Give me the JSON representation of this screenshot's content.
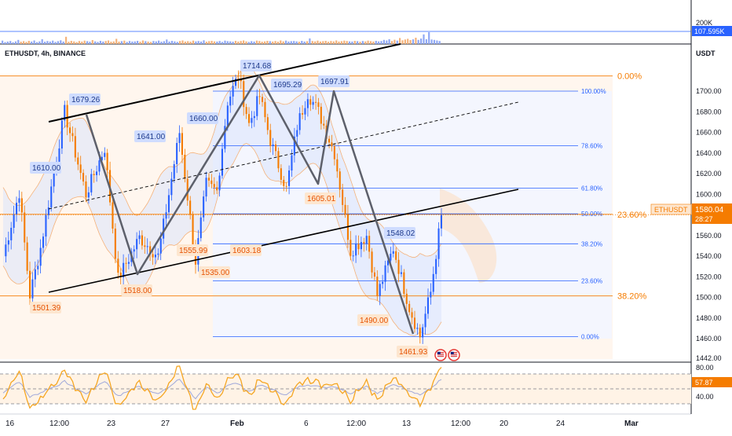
{
  "header": {
    "symbol_label": "ETHUSDT, 4h, BINANCE",
    "currency_label": "USDT"
  },
  "volume_panel": {
    "axis_label": "200K",
    "current_value": "107.595K",
    "values": [
      14,
      6,
      9,
      12,
      5,
      10,
      18,
      8,
      11,
      7,
      13,
      9,
      15,
      6,
      10,
      22,
      8,
      12,
      9,
      14,
      7,
      11,
      16,
      9,
      35,
      8,
      13,
      10,
      6,
      12,
      9,
      14,
      11,
      8,
      17,
      10,
      7,
      13,
      9,
      12,
      15,
      8,
      10,
      24,
      9,
      11,
      14,
      7,
      12,
      9,
      10,
      13,
      8,
      15,
      11,
      9,
      7,
      12,
      10,
      14,
      8,
      11,
      20,
      9,
      13,
      10,
      7,
      12,
      15,
      9,
      11,
      8,
      14,
      10,
      12,
      9,
      16,
      8,
      11,
      13,
      10,
      9,
      12,
      7,
      14,
      11,
      10,
      8,
      13,
      9,
      12,
      15,
      10,
      7,
      11,
      9,
      14,
      12,
      8,
      10,
      13,
      11,
      9,
      12,
      8,
      15,
      10,
      14,
      9,
      11,
      12,
      10,
      8,
      13,
      9,
      11,
      26,
      12,
      10,
      14,
      9,
      11,
      13,
      8,
      12,
      10,
      15,
      9,
      11,
      14,
      12,
      10,
      9,
      13,
      11,
      8,
      12,
      10,
      14,
      11,
      9,
      13,
      10,
      12,
      18,
      15,
      22,
      12,
      19,
      14,
      28,
      16,
      20,
      24,
      17,
      21,
      30,
      18,
      25,
      48,
      22,
      60,
      20,
      18,
      15,
      12
    ]
  },
  "chart_data": {
    "type": "candlestick",
    "symbol": "ETHUSDT",
    "timeframe": "4h",
    "exchange": "BINANCE",
    "y_axis_ticks": [
      "1700.00",
      "1680.00",
      "1660.00",
      "1640.00",
      "1620.00",
      "1600.00",
      "1580.00",
      "1560.00",
      "1540.00",
      "1520.00",
      "1500.00",
      "1480.00",
      "1460.00",
      "1442.00"
    ],
    "ylim": [
      1442,
      1727
    ],
    "x_axis_ticks": [
      "16",
      "12:00",
      "23",
      "27",
      "Feb",
      "6",
      "12:00",
      "13",
      "12:00",
      "20",
      "24",
      "Mar"
    ],
    "current_price": {
      "value": "1580.04",
      "countdown": "28:27",
      "label": "ETHUSDT",
      "color": "#f57c00"
    },
    "swing_labels": [
      {
        "text": "1610.00",
        "type": "high"
      },
      {
        "text": "1501.39",
        "type": "low"
      },
      {
        "text": "1679.26",
        "type": "high"
      },
      {
        "text": "1641.00",
        "type": "high"
      },
      {
        "text": "1518.00",
        "type": "low"
      },
      {
        "text": "1555.99",
        "type": "low"
      },
      {
        "text": "1660.00",
        "type": "high"
      },
      {
        "text": "1535.00",
        "type": "low"
      },
      {
        "text": "1603.18",
        "type": "low"
      },
      {
        "text": "1714.68",
        "type": "high"
      },
      {
        "text": "1695.29",
        "type": "high"
      },
      {
        "text": "1605.01",
        "type": "low"
      },
      {
        "text": "1697.91",
        "type": "high"
      },
      {
        "text": "1548.02",
        "type": "high"
      },
      {
        "text": "1490.00",
        "type": "low"
      },
      {
        "text": "1461.93",
        "type": "low"
      }
    ],
    "fib_retracement_inner": [
      {
        "level": "100.00%",
        "price": 1700.0
      },
      {
        "level": "78.60%",
        "price": 1647.0
      },
      {
        "level": "61.80%",
        "price": 1606.0
      },
      {
        "level": "50.00%",
        "price": 1581.0
      },
      {
        "level": "38.20%",
        "price": 1552.0
      },
      {
        "level": "23.60%",
        "price": 1516.0
      },
      {
        "level": "0.00%",
        "price": 1462.0
      }
    ],
    "fib_retracement_outer": [
      {
        "level": "0.00%",
        "price": 1714.68
      },
      {
        "level": "23.60%",
        "price": 1580.5
      },
      {
        "level": "38.20%",
        "price": 1501.39
      }
    ],
    "channel": {
      "upper": "rising",
      "lower": "rising",
      "mid": "dashed"
    },
    "rsi": {
      "value": "57.87",
      "upper": "80.00",
      "lower": "40.00"
    },
    "colors": {
      "candle_up": "#2962ff",
      "candle_down": "#f57c00",
      "fib_inner": "#2962ff",
      "fib_outer": "#f57c00",
      "price_tag": "#f57c00",
      "swing_low_bg": "#fde6cf",
      "swing_high_bg": "#cfdcff"
    }
  }
}
